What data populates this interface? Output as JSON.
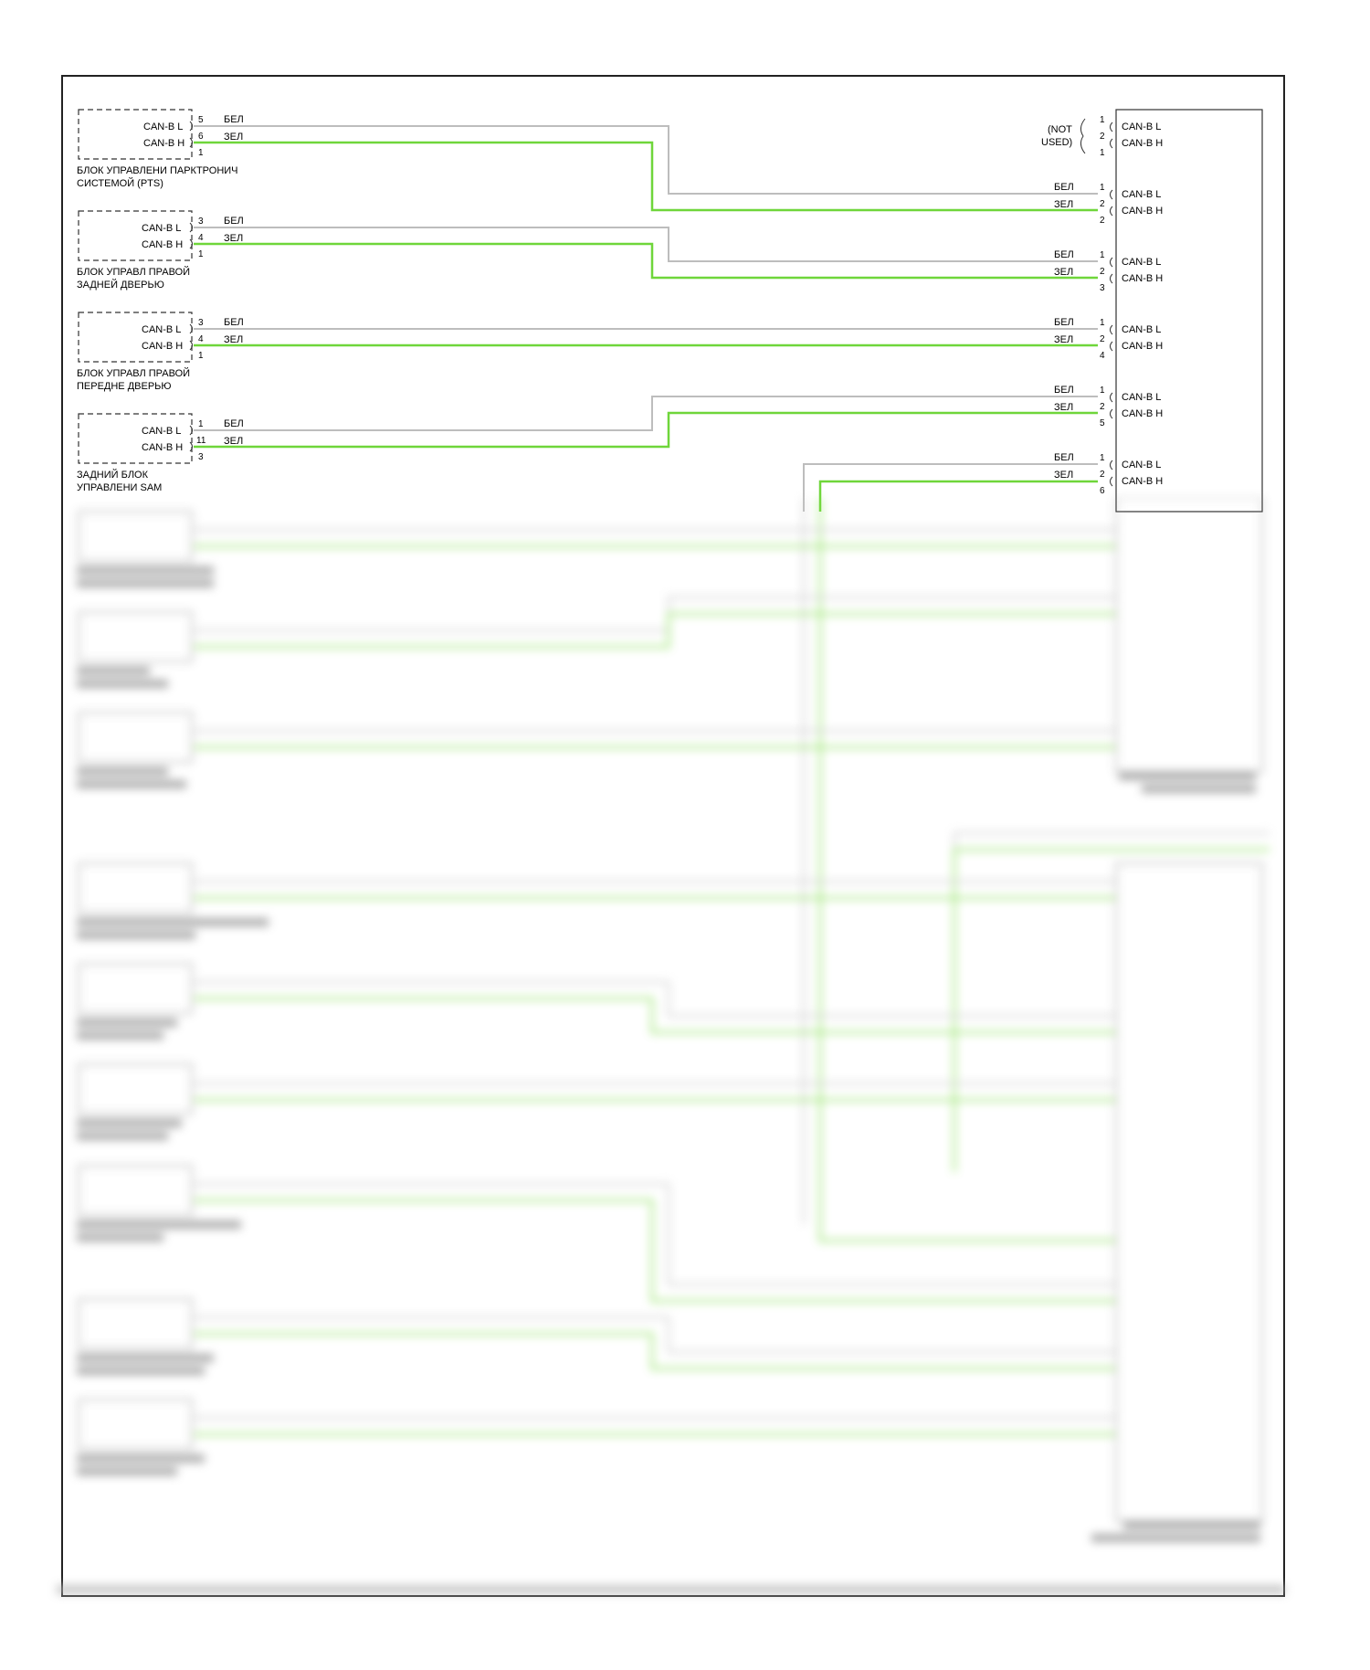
{
  "wire_labels": {
    "white": "БЕЛ",
    "green": "ЗЕЛ"
  },
  "signals": {
    "low": "CAN-B L",
    "high": "CAN-B H"
  },
  "not_used": "(NOT\nUSED)",
  "colors": {
    "green_wire": "#6fd63a",
    "white_wire": "#bdbdbd",
    "line": "#222222"
  },
  "modules": [
    {
      "name_line1": "БЛОК УПРАВЛЕНИ ПАРКТРОНИЧ",
      "name_line2": "СИСТЕМОЙ (PTS)",
      "pin_l": "5",
      "pin_h": "6",
      "pin_extra": "1"
    },
    {
      "name_line1": "БЛОК УПРАВЛ ПРАВОЙ",
      "name_line2": "ЗАДНЕЙ ДВЕРЬЮ",
      "pin_l": "3",
      "pin_h": "4",
      "pin_extra": "1"
    },
    {
      "name_line1": "БЛОК УПРАВЛ ПРАВОЙ",
      "name_line2": "ПЕРЕДНЕ ДВЕРЬЮ",
      "pin_l": "3",
      "pin_h": "4",
      "pin_extra": "1"
    },
    {
      "name_line1": "ЗАДНИЙ БЛОК",
      "name_line2": "УПРАВЛЕНИ SAM",
      "pin_l": "1",
      "pin_h": "11",
      "pin_extra": "3"
    }
  ],
  "connector_groups": [
    {
      "pin_l": "1",
      "pin_h": "2",
      "pin_extra": "1",
      "not_used": true
    },
    {
      "pin_l": "1",
      "pin_h": "2",
      "pin_extra": "2"
    },
    {
      "pin_l": "1",
      "pin_h": "2",
      "pin_extra": "3"
    },
    {
      "pin_l": "1",
      "pin_h": "2",
      "pin_extra": "4"
    },
    {
      "pin_l": "1",
      "pin_h": "2",
      "pin_extra": "5"
    },
    {
      "pin_l": "1",
      "pin_h": "2",
      "pin_extra": "6"
    }
  ]
}
